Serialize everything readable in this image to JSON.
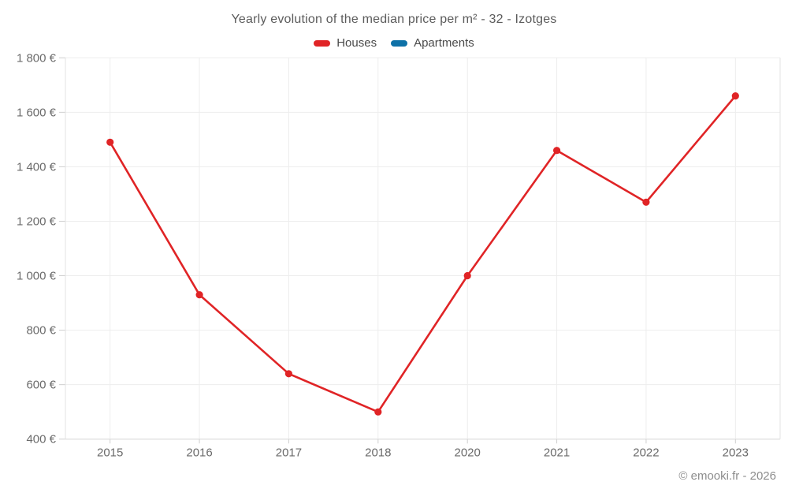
{
  "header": {
    "title": "Yearly evolution of the median price per m² - 32 - Izotges"
  },
  "legend": {
    "items": [
      {
        "id": "houses",
        "label": "Houses",
        "color": "#e02426"
      },
      {
        "id": "apartments",
        "label": "Apartments",
        "color": "#0e71a7"
      }
    ]
  },
  "footer": {
    "credit": "© emooki.fr - 2026"
  },
  "chart_data": {
    "type": "line",
    "title": "Yearly evolution of the median price per m² - 32 - Izotges",
    "categories": [
      "2015",
      "2016",
      "2017",
      "2018",
      "2020",
      "2021",
      "2022",
      "2023"
    ],
    "series": [
      {
        "name": "Houses",
        "color": "#e02426",
        "values": [
          1490,
          930,
          640,
          500,
          1000,
          1460,
          1270,
          1660
        ]
      },
      {
        "name": "Apartments",
        "color": "#0e71a7",
        "values": []
      }
    ],
    "xlabel": "",
    "ylabel": "",
    "ylim": [
      400,
      1800
    ],
    "y_ticks": [
      {
        "value": 400,
        "label": "400 €"
      },
      {
        "value": 600,
        "label": "600 €"
      },
      {
        "value": 800,
        "label": "800 €"
      },
      {
        "value": 1000,
        "label": "1 000 €"
      },
      {
        "value": 1200,
        "label": "1 200 €"
      },
      {
        "value": 1400,
        "label": "1 400 €"
      },
      {
        "value": 1600,
        "label": "1 600 €"
      },
      {
        "value": 1800,
        "label": "1 800 €"
      }
    ],
    "grid": true,
    "legend_position": "top",
    "currency_suffix": "€"
  },
  "style": {
    "grid_color": "#ededed",
    "edge_color": "#e3e3e3",
    "axis_color": "#d6d6d6",
    "tick_color": "#cfcfcf",
    "axis_label_color": "#6b6b6b"
  }
}
